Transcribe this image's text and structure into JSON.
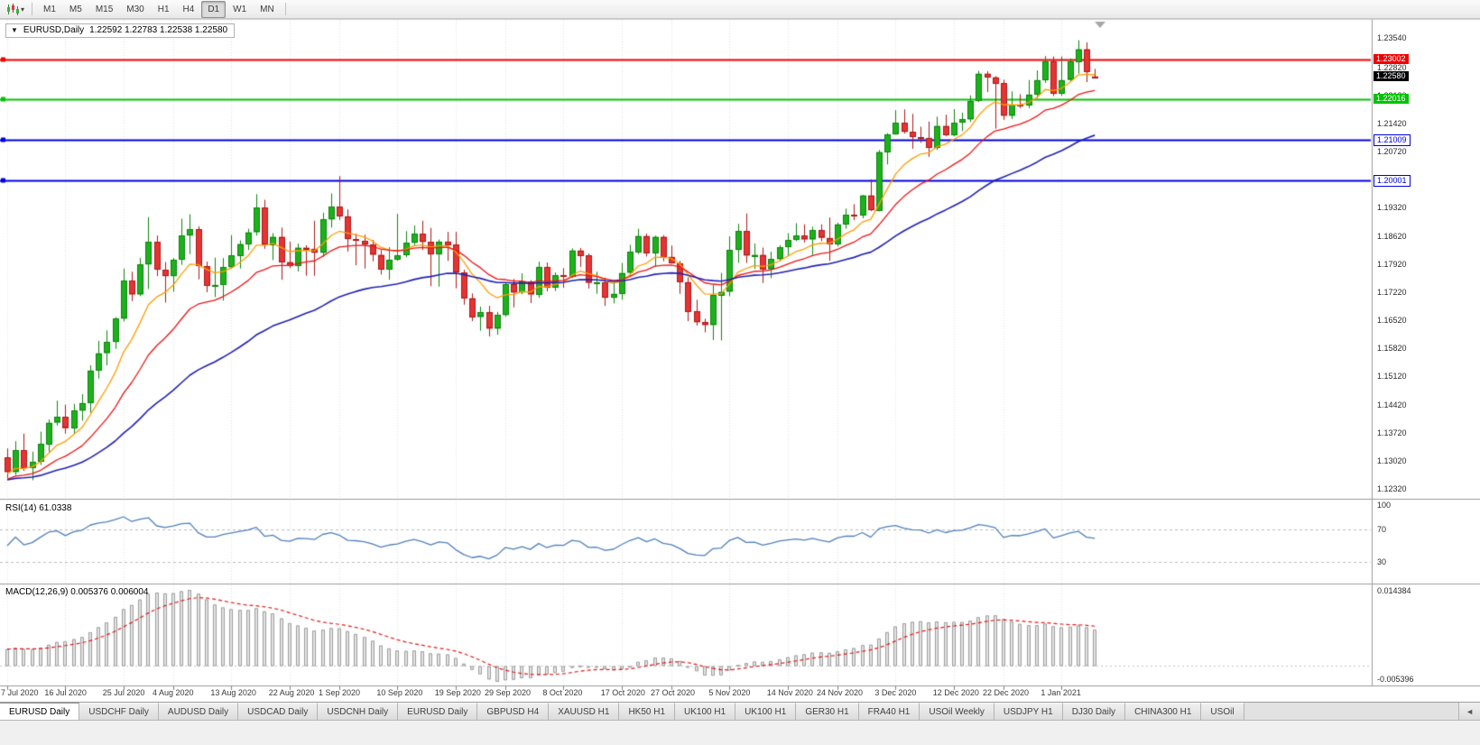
{
  "toolbar": {
    "caret_glyph": "▾",
    "timeframes": [
      "M1",
      "M5",
      "M15",
      "M30",
      "H1",
      "H4",
      "D1",
      "W1",
      "MN"
    ],
    "active_timeframe": "D1"
  },
  "chart_header": {
    "collapse_glyph": "▼",
    "symbol": "EURUSD,Daily",
    "ohlc": "1.22592 1.22783 1.22538 1.22580"
  },
  "price_axis": {
    "grid_labels": [
      "1.23540",
      "1.22820",
      "1.22120",
      "1.21420",
      "1.20720",
      "1.20020",
      "1.19320",
      "1.18620",
      "1.17920",
      "1.17220",
      "1.16520",
      "1.15820",
      "1.15120",
      "1.14420",
      "1.13720",
      "1.13020",
      "1.12320"
    ],
    "current_price": {
      "text": "1.22580",
      "value": 1.2258
    }
  },
  "horizontal_lines": [
    {
      "value": 1.23002,
      "text": "1.23002",
      "color": "#f00000",
      "label_style": "solid"
    },
    {
      "value": 1.22016,
      "text": "1.22016",
      "color": "#00c400",
      "label_style": "solid"
    },
    {
      "value": 1.21009,
      "text": "1.21009",
      "color": "#0000e0",
      "label_style": "outline"
    },
    {
      "value": 1.20001,
      "text": "1.20001",
      "color": "#0000e0",
      "label_style": "outline"
    }
  ],
  "indicator_panels": {
    "rsi": {
      "label": "RSI(14) 61.0338",
      "levels": [
        "100",
        "70",
        "30"
      ],
      "level_values": [
        100,
        70,
        30
      ],
      "line_color": "#4f81bd"
    },
    "macd": {
      "label": "MACD(12,26,9) 0.005376 0.006004",
      "axis_labels": [
        {
          "text": "0.014384",
          "edge": "top"
        },
        {
          "text": "-0.005396",
          "edge": "bottom"
        }
      ]
    }
  },
  "date_axis": [
    {
      "label": "7 Jul 2020",
      "index": 0
    },
    {
      "label": "16 Jul 2020",
      "index": 7
    },
    {
      "label": "25 Jul 2020",
      "index": 14
    },
    {
      "label": "4 Aug 2020",
      "index": 20
    },
    {
      "label": "13 Aug 2020",
      "index": 27
    },
    {
      "label": "22 Aug 2020",
      "index": 34
    },
    {
      "label": "1 Sep 2020",
      "index": 40
    },
    {
      "label": "10 Sep 2020",
      "index": 47
    },
    {
      "label": "19 Sep 2020",
      "index": 54
    },
    {
      "label": "29 Sep 2020",
      "index": 60
    },
    {
      "label": "8 Oct 2020",
      "index": 67
    },
    {
      "label": "17 Oct 2020",
      "index": 74
    },
    {
      "label": "27 Oct 2020",
      "index": 80
    },
    {
      "label": "5 Nov 2020",
      "index": 87
    },
    {
      "label": "14 Nov 2020",
      "index": 94
    },
    {
      "label": "24 Nov 2020",
      "index": 100
    },
    {
      "label": "3 Dec 2020",
      "index": 107
    },
    {
      "label": "12 Dec 2020",
      "index": 114
    },
    {
      "label": "22 Dec 2020",
      "index": 120
    },
    {
      "label": "1 Jan 2021",
      "index": 127
    }
  ],
  "chart_data": {
    "type": "candlestick",
    "symbol": "EURUSD",
    "timeframe": "Daily",
    "visible_price_range": {
      "min": 1.121,
      "max": 1.24
    },
    "rsi_period": 14,
    "macd": {
      "fast": 12,
      "slow": 26,
      "signal": 9
    },
    "moving_averages": [
      {
        "period": 8,
        "type": "ema",
        "color": "#ff9d00",
        "seed_offset": -0.0005
      },
      {
        "period": 17,
        "type": "ema",
        "color": "#ee1414",
        "seed_offset": -0.002
      },
      {
        "period": 40,
        "type": "ema",
        "color": "#2121b5",
        "seed_offset": -0.002
      }
    ],
    "candles": [
      [
        1.131,
        1.1333,
        1.1259,
        1.1274
      ],
      [
        1.1274,
        1.1351,
        1.1267,
        1.1329
      ],
      [
        1.1329,
        1.137,
        1.1277,
        1.1284
      ],
      [
        1.1284,
        1.1325,
        1.1254,
        1.13
      ],
      [
        1.13,
        1.1375,
        1.1292,
        1.1344
      ],
      [
        1.1344,
        1.1405,
        1.1325,
        1.1397
      ],
      [
        1.1397,
        1.1452,
        1.139,
        1.1411
      ],
      [
        1.1411,
        1.1442,
        1.137,
        1.1383
      ],
      [
        1.1383,
        1.1444,
        1.1369,
        1.1427
      ],
      [
        1.1427,
        1.1468,
        1.1402,
        1.1446
      ],
      [
        1.1446,
        1.154,
        1.1422,
        1.1527
      ],
      [
        1.1527,
        1.1601,
        1.1507,
        1.157
      ],
      [
        1.157,
        1.1627,
        1.154,
        1.1598
      ],
      [
        1.1598,
        1.166,
        1.1581,
        1.1656
      ],
      [
        1.1656,
        1.1781,
        1.1649,
        1.175
      ],
      [
        1.175,
        1.1773,
        1.17,
        1.1716
      ],
      [
        1.1716,
        1.1807,
        1.1712,
        1.1791
      ],
      [
        1.1791,
        1.1909,
        1.173,
        1.1847
      ],
      [
        1.1847,
        1.1863,
        1.1762,
        1.1778
      ],
      [
        1.1778,
        1.1797,
        1.1696,
        1.1762
      ],
      [
        1.1762,
        1.1807,
        1.1723,
        1.1803
      ],
      [
        1.1803,
        1.1905,
        1.179,
        1.1863
      ],
      [
        1.1863,
        1.1916,
        1.1817,
        1.1878
      ],
      [
        1.1878,
        1.1886,
        1.1754,
        1.1787
      ],
      [
        1.1787,
        1.1798,
        1.1722,
        1.1738
      ],
      [
        1.1738,
        1.1808,
        1.171,
        1.174
      ],
      [
        1.174,
        1.1807,
        1.1701,
        1.1784
      ],
      [
        1.1784,
        1.1864,
        1.1782,
        1.1813
      ],
      [
        1.1813,
        1.1851,
        1.1781,
        1.1842
      ],
      [
        1.1842,
        1.188,
        1.1827,
        1.1871
      ],
      [
        1.1871,
        1.1966,
        1.1863,
        1.1932
      ],
      [
        1.1932,
        1.1952,
        1.183,
        1.1839
      ],
      [
        1.1839,
        1.1869,
        1.1802,
        1.186
      ],
      [
        1.186,
        1.1883,
        1.1753,
        1.1797
      ],
      [
        1.1797,
        1.1848,
        1.1782,
        1.1787
      ],
      [
        1.1787,
        1.1843,
        1.1774,
        1.1833
      ],
      [
        1.1833,
        1.1839,
        1.1763,
        1.183
      ],
      [
        1.183,
        1.19,
        1.1763,
        1.182
      ],
      [
        1.182,
        1.192,
        1.181,
        1.1903
      ],
      [
        1.1903,
        1.1968,
        1.1883,
        1.1935
      ],
      [
        1.1935,
        1.2011,
        1.1902,
        1.1911
      ],
      [
        1.1911,
        1.1928,
        1.1823,
        1.1854
      ],
      [
        1.1854,
        1.1868,
        1.1789,
        1.185
      ],
      [
        1.185,
        1.1865,
        1.1781,
        1.184
      ],
      [
        1.184,
        1.1852,
        1.1799,
        1.1815
      ],
      [
        1.1815,
        1.1827,
        1.1766,
        1.1779
      ],
      [
        1.1779,
        1.1834,
        1.1753,
        1.1803
      ],
      [
        1.1803,
        1.1917,
        1.18,
        1.1814
      ],
      [
        1.1814,
        1.1874,
        1.1809,
        1.1845
      ],
      [
        1.1845,
        1.1888,
        1.1839,
        1.1867
      ],
      [
        1.1867,
        1.19,
        1.1827,
        1.1847
      ],
      [
        1.1847,
        1.1882,
        1.1737,
        1.1816
      ],
      [
        1.1816,
        1.1853,
        1.1736,
        1.1848
      ],
      [
        1.1848,
        1.1872,
        1.18,
        1.184
      ],
      [
        1.184,
        1.1872,
        1.1732,
        1.1771
      ],
      [
        1.1771,
        1.1778,
        1.1691,
        1.1707
      ],
      [
        1.1707,
        1.1719,
        1.165,
        1.166
      ],
      [
        1.166,
        1.1686,
        1.1626,
        1.1672
      ],
      [
        1.1672,
        1.1688,
        1.1612,
        1.1631
      ],
      [
        1.1631,
        1.1673,
        1.1616,
        1.1665
      ],
      [
        1.1665,
        1.1745,
        1.1661,
        1.1742
      ],
      [
        1.1742,
        1.1755,
        1.1684,
        1.1721
      ],
      [
        1.1721,
        1.1769,
        1.1717,
        1.1748
      ],
      [
        1.1748,
        1.1752,
        1.1695,
        1.1716
      ],
      [
        1.1716,
        1.1798,
        1.1708,
        1.1785
      ],
      [
        1.1785,
        1.1796,
        1.1724,
        1.1733
      ],
      [
        1.1733,
        1.1771,
        1.1725,
        1.1764
      ],
      [
        1.1764,
        1.1782,
        1.1733,
        1.1761
      ],
      [
        1.1761,
        1.1831,
        1.1758,
        1.1826
      ],
      [
        1.1826,
        1.1832,
        1.1785,
        1.1813
      ],
      [
        1.1813,
        1.1818,
        1.1731,
        1.1745
      ],
      [
        1.1745,
        1.1773,
        1.1718,
        1.1746
      ],
      [
        1.1746,
        1.1758,
        1.1688,
        1.1708
      ],
      [
        1.1708,
        1.1747,
        1.1694,
        1.1718
      ],
      [
        1.1718,
        1.1795,
        1.1703,
        1.177
      ],
      [
        1.177,
        1.184,
        1.1762,
        1.1822
      ],
      [
        1.1822,
        1.188,
        1.1817,
        1.1862
      ],
      [
        1.1862,
        1.1868,
        1.1811,
        1.1819
      ],
      [
        1.1819,
        1.1863,
        1.1786,
        1.186
      ],
      [
        1.186,
        1.1864,
        1.1799,
        1.181
      ],
      [
        1.181,
        1.1838,
        1.1793,
        1.1794
      ],
      [
        1.1794,
        1.18,
        1.1718,
        1.1747
      ],
      [
        1.1747,
        1.1759,
        1.165,
        1.1674
      ],
      [
        1.1674,
        1.1703,
        1.1639,
        1.1647
      ],
      [
        1.1647,
        1.1656,
        1.1622,
        1.164
      ],
      [
        1.164,
        1.174,
        1.1603,
        1.1715
      ],
      [
        1.1715,
        1.177,
        1.1602,
        1.1723
      ],
      [
        1.1723,
        1.1861,
        1.1712,
        1.1827
      ],
      [
        1.1827,
        1.1892,
        1.1795,
        1.1874
      ],
      [
        1.1874,
        1.1918,
        1.1795,
        1.1813
      ],
      [
        1.1813,
        1.1843,
        1.178,
        1.1815
      ],
      [
        1.1815,
        1.1833,
        1.1745,
        1.1779
      ],
      [
        1.1779,
        1.1823,
        1.1757,
        1.1804
      ],
      [
        1.1804,
        1.1839,
        1.1799,
        1.1834
      ],
      [
        1.1834,
        1.1869,
        1.1814,
        1.1852
      ],
      [
        1.1852,
        1.1894,
        1.1849,
        1.1863
      ],
      [
        1.1863,
        1.1891,
        1.1846,
        1.1853
      ],
      [
        1.1853,
        1.1885,
        1.1815,
        1.1876
      ],
      [
        1.1876,
        1.1891,
        1.1849,
        1.1857
      ],
      [
        1.1857,
        1.1908,
        1.18,
        1.1842
      ],
      [
        1.1842,
        1.1895,
        1.1836,
        1.1891
      ],
      [
        1.1891,
        1.193,
        1.188,
        1.1915
      ],
      [
        1.1915,
        1.1941,
        1.1901,
        1.1914
      ],
      [
        1.1914,
        1.1964,
        1.1906,
        1.1963
      ],
      [
        1.1963,
        1.2003,
        1.1924,
        1.1926
      ],
      [
        1.1926,
        1.2076,
        1.1923,
        1.2071
      ],
      [
        1.2071,
        1.2118,
        1.204,
        1.2115
      ],
      [
        1.2115,
        1.2175,
        1.2114,
        1.2144
      ],
      [
        1.2144,
        1.2177,
        1.2117,
        1.2121
      ],
      [
        1.2121,
        1.2166,
        1.2079,
        1.2108
      ],
      [
        1.2108,
        1.2134,
        1.2094,
        1.2106
      ],
      [
        1.2106,
        1.2147,
        1.2059,
        1.2081
      ],
      [
        1.2081,
        1.2159,
        1.2076,
        1.2136
      ],
      [
        1.2136,
        1.2164,
        1.211,
        1.2113
      ],
      [
        1.2113,
        1.2178,
        1.211,
        1.2144
      ],
      [
        1.2144,
        1.2169,
        1.2123,
        1.2152
      ],
      [
        1.2152,
        1.2212,
        1.2146,
        1.2198
      ],
      [
        1.2198,
        1.2273,
        1.2195,
        1.2266
      ],
      [
        1.2266,
        1.2272,
        1.222,
        1.2257
      ],
      [
        1.2257,
        1.226,
        1.2129,
        1.2242
      ],
      [
        1.2242,
        1.2251,
        1.2151,
        1.2161
      ],
      [
        1.2161,
        1.2222,
        1.2153,
        1.2189
      ],
      [
        1.2189,
        1.2215,
        1.218,
        1.2187
      ],
      [
        1.2187,
        1.225,
        1.218,
        1.2214
      ],
      [
        1.2214,
        1.2274,
        1.2205,
        1.225
      ],
      [
        1.225,
        1.231,
        1.2243,
        1.2297
      ],
      [
        1.2297,
        1.2309,
        1.221,
        1.2216
      ],
      [
        1.2216,
        1.2309,
        1.2211,
        1.225
      ],
      [
        1.225,
        1.2304,
        1.2246,
        1.2296
      ],
      [
        1.2296,
        1.2349,
        1.2266,
        1.2327
      ],
      [
        1.2327,
        1.2344,
        1.2245,
        1.227
      ],
      [
        1.2259,
        1.2278,
        1.2254,
        1.2258
      ]
    ]
  },
  "tabs": {
    "items": [
      "EURUSD Daily",
      "USDCHF Daily",
      "AUDUSD Daily",
      "USDCAD Daily",
      "USDCNH Daily",
      "EURUSD Daily",
      "GBPUSD H4",
      "XAUUSD H1",
      "HK50 H1",
      "UK100 H1",
      "UK100 H1",
      "GER30 H1",
      "FRA40 H1",
      "USOil Weekly",
      "USDJPY H1",
      "DJ30 Daily",
      "CHINA300 H1",
      "USOil"
    ],
    "active_index": 0,
    "scroll_glyph": "◄"
  }
}
